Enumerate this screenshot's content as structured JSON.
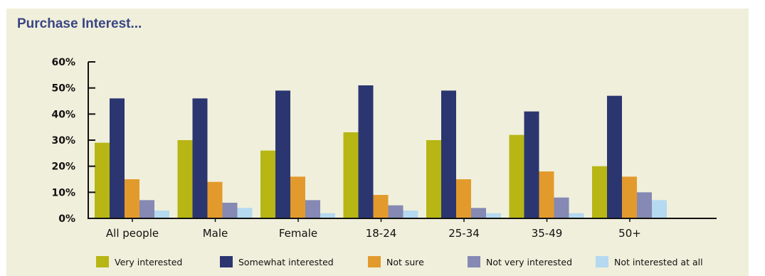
{
  "chart_data": {
    "type": "bar",
    "title": "Purchase Interest...",
    "xlabel": "",
    "ylabel": "",
    "ylim": [
      0,
      60
    ],
    "y_ticks": [
      "60%",
      "50%",
      "40%",
      "30%",
      "20%",
      "10%",
      "0%"
    ],
    "y_tick_values": [
      60,
      50,
      40,
      30,
      20,
      10,
      0
    ],
    "grid": false,
    "legend_position": "bottom",
    "categories": [
      "All people",
      "Male",
      "Female",
      "18-24",
      "25-34",
      "35-49",
      "50+"
    ],
    "series": [
      {
        "name": "Very interested",
        "color": "#b7b614",
        "values": [
          29,
          30,
          26,
          33,
          30,
          32,
          20
        ]
      },
      {
        "name": "Somewhat interested",
        "color": "#2b3670",
        "values": [
          46,
          46,
          49,
          51,
          49,
          41,
          47
        ]
      },
      {
        "name": "Not sure",
        "color": "#e39a2c",
        "values": [
          15,
          14,
          16,
          9,
          15,
          18,
          16
        ]
      },
      {
        "name": "Not very interested",
        "color": "#8589b3",
        "values": [
          7,
          6,
          7,
          5,
          4,
          8,
          10
        ]
      },
      {
        "name": "Not interested at all",
        "color": "#b5d9f0",
        "values": [
          3,
          4,
          2,
          3,
          2,
          2,
          7
        ]
      }
    ]
  }
}
